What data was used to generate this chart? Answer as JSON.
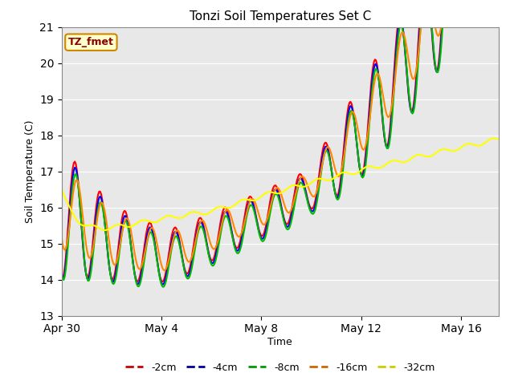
{
  "title": "Tonzi Soil Temperatures Set C",
  "xlabel": "Time",
  "ylabel": "Soil Temperature (C)",
  "ylim": [
    13.0,
    21.0
  ],
  "yticks": [
    13.0,
    14.0,
    15.0,
    16.0,
    17.0,
    18.0,
    19.0,
    20.0,
    21.0
  ],
  "xtick_labels": [
    "Apr 30",
    "May 4",
    "May 8",
    "May 12",
    "May 16"
  ],
  "xtick_positions": [
    0,
    4,
    8,
    12,
    16
  ],
  "xlim": [
    0,
    17.5
  ],
  "bg_color": "#e5e5e5",
  "plot_bg": "#e8e8e8",
  "annotation_text": "TZ_fmet",
  "annotation_bg": "#ffffcc",
  "annotation_border": "#cc8800",
  "line_colors": [
    "#ff0000",
    "#0000ff",
    "#00bb00",
    "#ff8800",
    "#ffff00"
  ],
  "line_labels": [
    "-2cm",
    "-4cm",
    "-8cm",
    "-16cm",
    "-32cm"
  ],
  "line_width": 1.5,
  "legend_colors": [
    "#cc0000",
    "#000099",
    "#009900",
    "#cc6600",
    "#cccc00"
  ]
}
